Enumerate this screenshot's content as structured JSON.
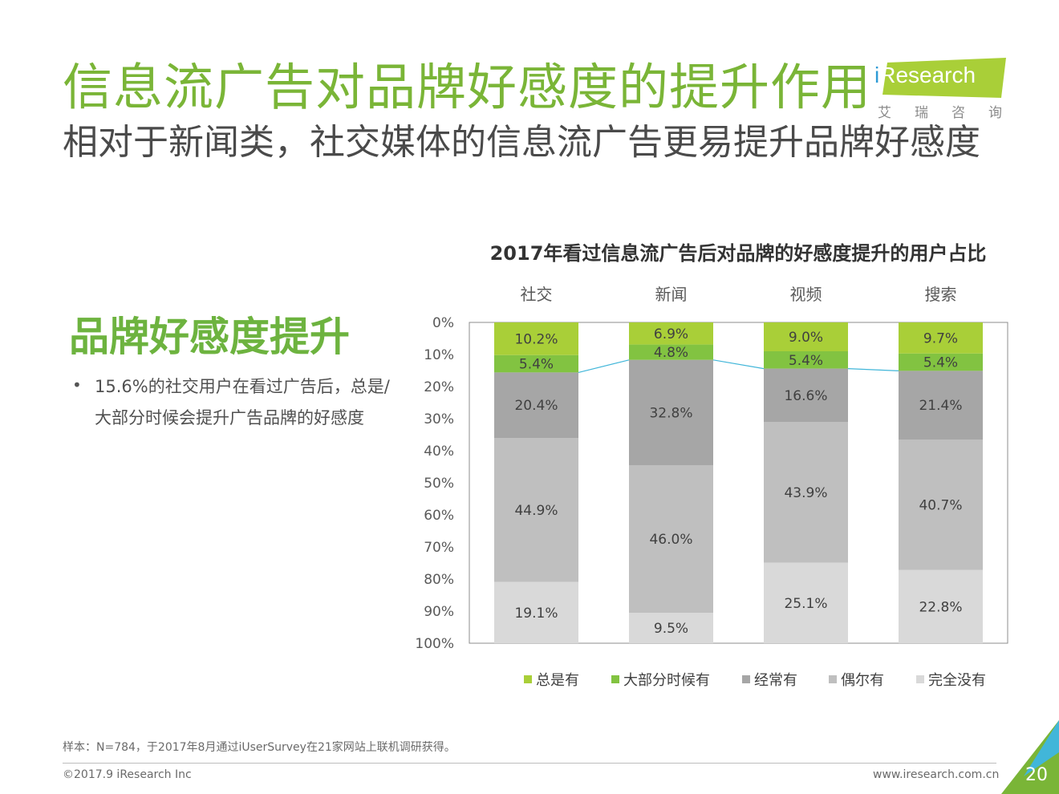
{
  "header": {
    "title": "信息流广告对品牌好感度的提升作用",
    "subtitle": "相对于新闻类，社交媒体的信息流广告更易提升品牌好感度"
  },
  "logo": {
    "i": "i",
    "name": "Research",
    "cn": "艾瑞咨询"
  },
  "side": {
    "heading": "品牌好感度提升",
    "bullet_line1": "15.6%的社交用户在看过广告后，总是/",
    "bullet_line2": "大部分时候会提升广告品牌的好感度"
  },
  "colors": {
    "title_green": "#7ab537",
    "series": [
      "#a9cf38",
      "#82c341",
      "#a6a6a6",
      "#bfbfbf",
      "#d9d9d9"
    ],
    "trend_line": "#41b6d9"
  },
  "chart_data": {
    "type": "bar",
    "stacked": true,
    "orientation": "vertical",
    "title": "2017年看过信息流广告后对品牌的好感度提升的用户占比",
    "categories": [
      "社交",
      "新闻",
      "视频",
      "搜索"
    ],
    "category_axis_position": "top",
    "y_axis": {
      "ticks": [
        "0%",
        "10%",
        "20%",
        "30%",
        "40%",
        "50%",
        "60%",
        "70%",
        "80%",
        "90%",
        "100%"
      ],
      "ylim": [
        0,
        100
      ],
      "inverted": true
    },
    "series": [
      {
        "name": "总是有",
        "values": [
          10.2,
          6.9,
          9.0,
          9.7
        ],
        "labels": [
          "10.2%",
          "6.9%",
          "9.0%",
          "9.7%"
        ]
      },
      {
        "name": "大部分时候有",
        "values": [
          5.4,
          4.8,
          5.4,
          5.4
        ],
        "labels": [
          "5.4%",
          "4.8%",
          "5.4%",
          "5.4%"
        ]
      },
      {
        "name": "经常有",
        "values": [
          20.4,
          32.8,
          16.6,
          21.4
        ],
        "labels": [
          "20.4%",
          "32.8%",
          "16.6%",
          "21.4%"
        ]
      },
      {
        "name": "偶尔有",
        "values": [
          44.9,
          46.0,
          43.9,
          40.7
        ],
        "labels": [
          "44.9%",
          "46.0%",
          "43.9%",
          "40.7%"
        ]
      },
      {
        "name": "完全没有",
        "values": [
          19.1,
          9.5,
          25.1,
          22.8
        ],
        "labels": [
          "19.1%",
          "9.5%",
          "25.1%",
          "22.8%"
        ]
      }
    ],
    "legend_position": "bottom",
    "grid": false
  },
  "footer": {
    "note": "样本：N=784，于2017年8月通过iUserSurvey在21家网站上联机调研获得。",
    "copyright": "©2017.9 iResearch Inc",
    "url": "www.iresearch.com.cn",
    "page": "20"
  }
}
